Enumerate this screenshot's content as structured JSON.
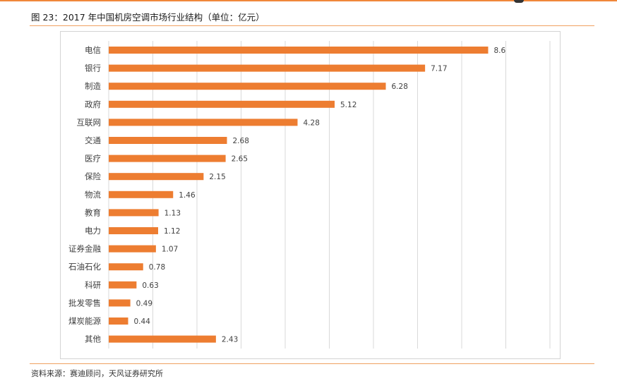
{
  "figure": {
    "title": "图 23：2017 年中国机房空调市场行业结构（单位：亿元）",
    "source": "资料来源：赛迪顾问，天风证券研究所"
  },
  "colors": {
    "accent": "#f0873a",
    "bar": "#ed7d31",
    "grid": "#d9d9d9"
  },
  "chart_data": {
    "type": "bar",
    "orientation": "horizontal",
    "title": "",
    "xlabel": "",
    "ylabel": "",
    "xlim": [
      0,
      10
    ],
    "grid": true,
    "legend": "none",
    "categories": [
      "电信",
      "银行",
      "制造",
      "政府",
      "互联网",
      "交通",
      "医疗",
      "保险",
      "物流",
      "教育",
      "电力",
      "证券金融",
      "石油石化",
      "科研",
      "批发零售",
      "煤炭能源",
      "其他"
    ],
    "values": [
      8.6,
      7.17,
      6.28,
      5.12,
      4.28,
      2.68,
      2.65,
      2.15,
      1.46,
      1.13,
      1.12,
      1.07,
      0.78,
      0.63,
      0.49,
      0.44,
      2.43
    ],
    "value_labels": [
      "8.6",
      "7.17",
      "6.28",
      "5.12",
      "4.28",
      "2.68",
      "2.65",
      "2.15",
      "1.46",
      "1.13",
      "1.12",
      "1.07",
      "0.78",
      "0.63",
      "0.49",
      "0.44",
      "2.43"
    ]
  }
}
